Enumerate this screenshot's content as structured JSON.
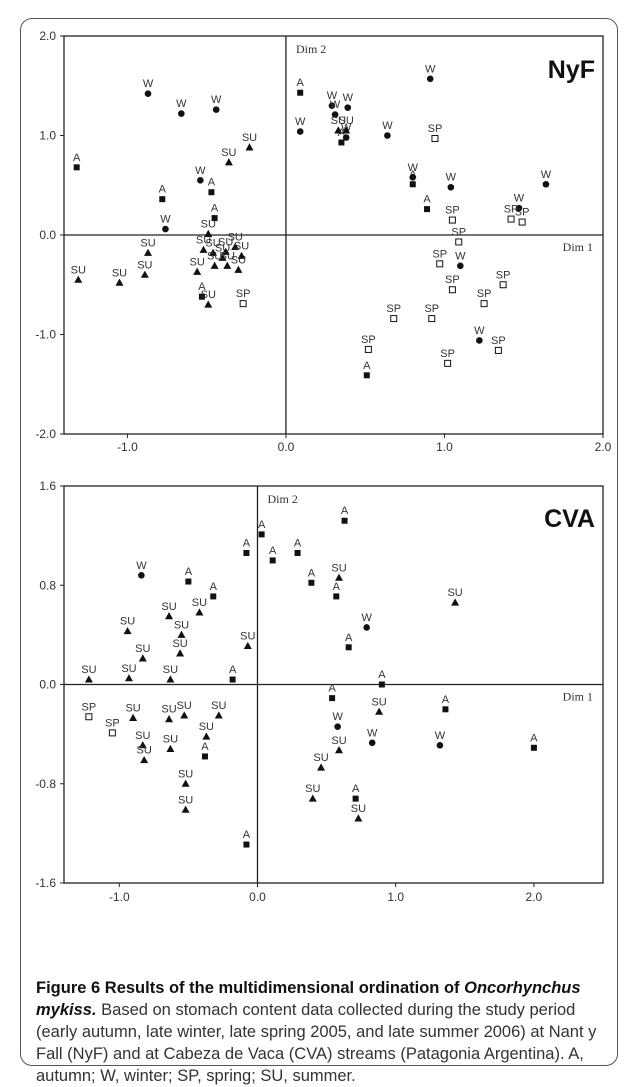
{
  "chart_data": [
    {
      "type": "scatter",
      "title": "NyF",
      "xlabel": "Dim 1",
      "ylabel": "Dim 2",
      "xlim": [
        -1.4,
        2.0
      ],
      "ylim": [
        -2.0,
        2.0
      ],
      "x_ticks": [
        "-1.0",
        "0.0",
        "1.0",
        "2.0"
      ],
      "y_ticks": [
        "2.0",
        "1.0",
        "0.0",
        "-1.0",
        "-2.0"
      ],
      "series": [
        {
          "name": "A",
          "marker": "square",
          "points": [
            [
              -1.32,
              0.68
            ],
            [
              -0.78,
              0.36
            ],
            [
              -0.47,
              0.43
            ],
            [
              -0.45,
              0.17
            ],
            [
              -0.53,
              -0.62
            ],
            [
              0.09,
              1.43
            ],
            [
              0.35,
              0.93
            ],
            [
              0.8,
              0.51
            ],
            [
              0.89,
              0.26
            ],
            [
              0.51,
              -1.41
            ]
          ]
        },
        {
          "name": "W",
          "marker": "circle",
          "points": [
            [
              -0.87,
              1.42
            ],
            [
              -0.66,
              1.22
            ],
            [
              -0.54,
              0.55
            ],
            [
              -0.44,
              1.26
            ],
            [
              -0.76,
              0.06
            ],
            [
              0.09,
              1.04
            ],
            [
              0.29,
              1.3
            ],
            [
              0.39,
              1.28
            ],
            [
              0.38,
              0.98
            ],
            [
              0.31,
              1.21
            ],
            [
              0.64,
              1.0
            ],
            [
              0.91,
              1.57
            ],
            [
              0.8,
              0.58
            ],
            [
              1.04,
              0.48
            ],
            [
              1.47,
              0.27
            ],
            [
              1.64,
              0.51
            ],
            [
              1.1,
              -0.31
            ],
            [
              1.22,
              -1.06
            ]
          ]
        },
        {
          "name": "SP",
          "marker": "open-square",
          "points": [
            [
              0.94,
              0.97
            ],
            [
              1.05,
              0.15
            ],
            [
              1.42,
              0.16
            ],
            [
              1.49,
              0.13
            ],
            [
              1.09,
              -0.07
            ],
            [
              0.97,
              -0.29
            ],
            [
              1.05,
              -0.55
            ],
            [
              1.25,
              -0.69
            ],
            [
              1.37,
              -0.5
            ],
            [
              0.68,
              -0.84
            ],
            [
              0.92,
              -0.84
            ],
            [
              0.52,
              -1.15
            ],
            [
              1.02,
              -1.29
            ],
            [
              1.34,
              -1.16
            ],
            [
              -0.27,
              -0.69
            ]
          ]
        },
        {
          "name": "SU",
          "marker": "triangle",
          "points": [
            [
              -0.23,
              0.88
            ],
            [
              -0.36,
              0.73
            ],
            [
              0.33,
              1.05
            ],
            [
              0.38,
              1.05
            ],
            [
              -0.49,
              0.01
            ],
            [
              -0.87,
              -0.18
            ],
            [
              -0.89,
              -0.4
            ],
            [
              -1.05,
              -0.48
            ],
            [
              -1.31,
              -0.45
            ],
            [
              -0.52,
              -0.15
            ],
            [
              -0.56,
              -0.37
            ],
            [
              -0.46,
              -0.18
            ],
            [
              -0.4,
              -0.23
            ],
            [
              -0.38,
              -0.17
            ],
            [
              -0.32,
              -0.12
            ],
            [
              -0.28,
              -0.21
            ],
            [
              -0.45,
              -0.31
            ],
            [
              -0.37,
              -0.31
            ],
            [
              -0.3,
              -0.35
            ],
            [
              -0.49,
              -0.7
            ]
          ]
        }
      ]
    },
    {
      "type": "scatter",
      "title": "CVA",
      "xlabel": "Dim 1",
      "ylabel": "Dim 2",
      "xlim": [
        -1.4,
        2.5
      ],
      "ylim": [
        -1.6,
        1.6
      ],
      "x_ticks": [
        "-1.0",
        "0.0",
        "1.0",
        "2.0"
      ],
      "y_ticks": [
        "1.6",
        "0.8",
        "0.0",
        "-0.8",
        "-1.6"
      ],
      "series": [
        {
          "name": "A",
          "marker": "square",
          "points": [
            [
              -0.5,
              0.83
            ],
            [
              -0.32,
              0.71
            ],
            [
              -0.18,
              0.04
            ],
            [
              -0.08,
              1.06
            ],
            [
              0.03,
              1.21
            ],
            [
              0.11,
              1.0
            ],
            [
              0.29,
              1.06
            ],
            [
              0.39,
              0.82
            ],
            [
              0.57,
              0.71
            ],
            [
              0.63,
              1.32
            ],
            [
              0.66,
              0.3
            ],
            [
              0.54,
              -0.11
            ],
            [
              0.9,
              0.0
            ],
            [
              1.36,
              -0.2
            ],
            [
              -0.38,
              -0.58
            ],
            [
              0.71,
              -0.92
            ],
            [
              -0.08,
              -1.29
            ],
            [
              2.0,
              -0.51
            ]
          ]
        },
        {
          "name": "W",
          "marker": "circle",
          "points": [
            [
              -0.84,
              0.88
            ],
            [
              0.79,
              0.46
            ],
            [
              0.58,
              -0.34
            ],
            [
              0.83,
              -0.47
            ],
            [
              1.32,
              -0.49
            ]
          ]
        },
        {
          "name": "SP",
          "marker": "open-square",
          "points": [
            [
              -1.22,
              -0.26
            ],
            [
              -1.05,
              -0.39
            ]
          ]
        },
        {
          "name": "SU",
          "marker": "triangle",
          "points": [
            [
              -0.94,
              0.43
            ],
            [
              -0.83,
              0.21
            ],
            [
              -0.64,
              0.55
            ],
            [
              -0.55,
              0.4
            ],
            [
              -0.56,
              0.25
            ],
            [
              -0.42,
              0.58
            ],
            [
              -0.07,
              0.31
            ],
            [
              -1.22,
              0.04
            ],
            [
              -0.93,
              0.05
            ],
            [
              -0.63,
              0.04
            ],
            [
              -0.9,
              -0.27
            ],
            [
              -0.64,
              -0.28
            ],
            [
              -0.53,
              -0.25
            ],
            [
              -0.28,
              -0.25
            ],
            [
              -0.37,
              -0.42
            ],
            [
              -0.83,
              -0.49
            ],
            [
              -0.82,
              -0.61
            ],
            [
              -0.63,
              -0.52
            ],
            [
              -0.52,
              -0.8
            ],
            [
              -0.52,
              -1.01
            ],
            [
              0.59,
              0.86
            ],
            [
              1.43,
              0.66
            ],
            [
              0.88,
              -0.22
            ],
            [
              0.59,
              -0.53
            ],
            [
              0.46,
              -0.67
            ],
            [
              0.4,
              -0.92
            ],
            [
              0.73,
              -1.08
            ]
          ]
        }
      ]
    }
  ],
  "caption": {
    "label": "Figure 6",
    "title_start": " Results of the multidimensional ordination of ",
    "species": "Oncorhynchus mykiss.",
    "body": " Based on stomach content data collected during the study period (early autumn, late winter, late spring 2005, and late summer 2006) at Nant y Fall (NyF) and at Cabeza de Vaca (CVA) streams (Patagonia Argentina). A, autumn; W, winter; SP, spring; SU, summer."
  },
  "colors": {
    "marker": "#111111",
    "axis": "#222222",
    "text": "#333333"
  }
}
